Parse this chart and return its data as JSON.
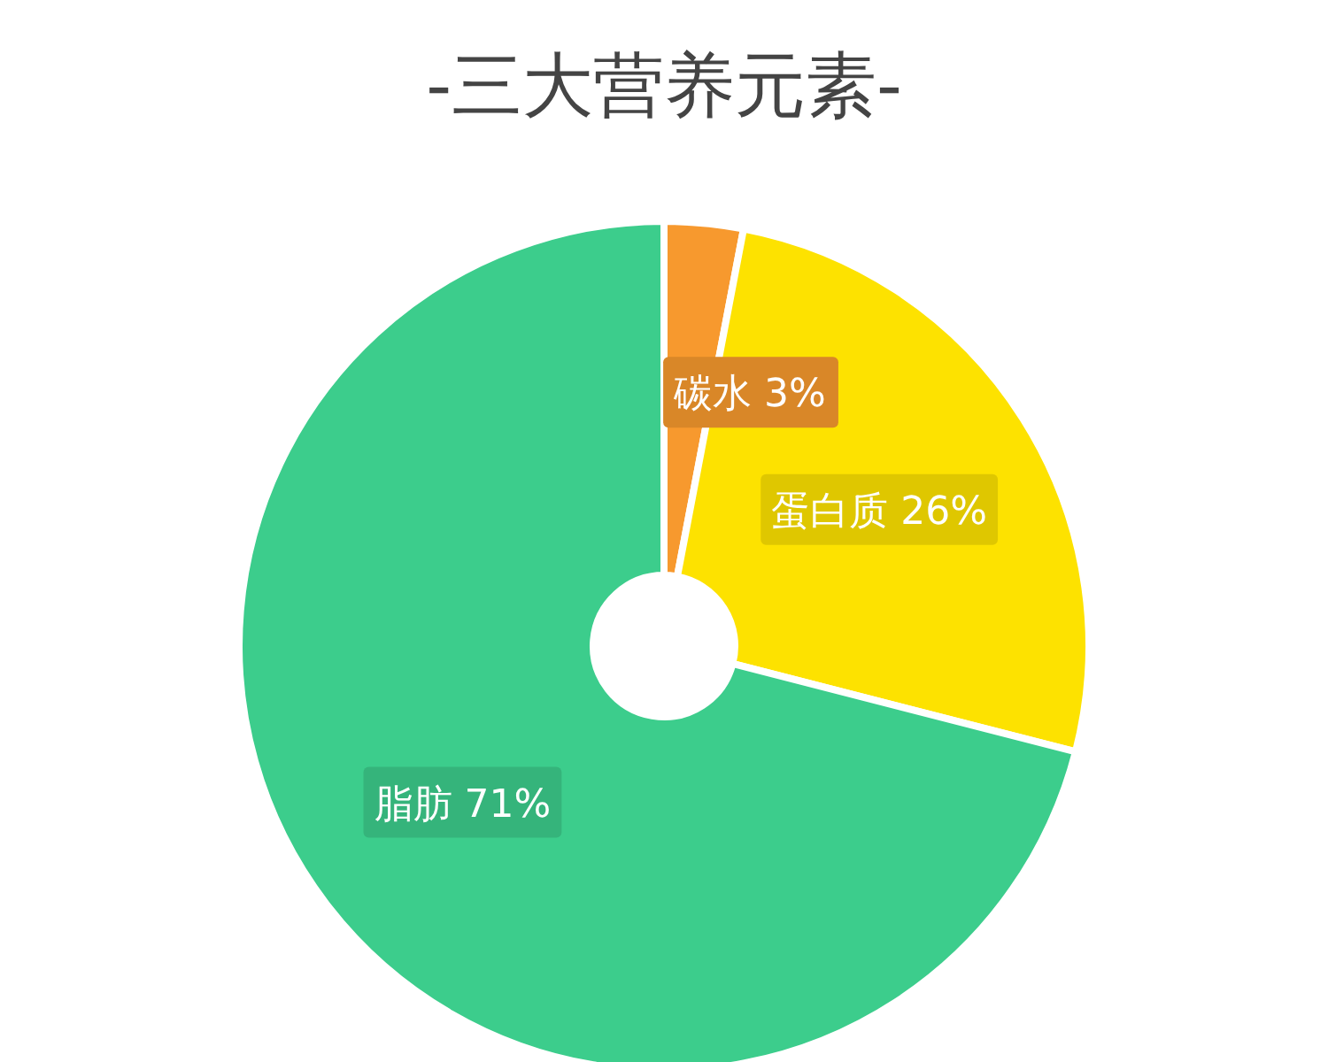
{
  "chart_data": {
    "type": "donut",
    "title": "-三大营养元素-",
    "categories": [
      "碳水",
      "蛋白质",
      "脂肪"
    ],
    "values": [
      3,
      26,
      71
    ],
    "colors": [
      "#f7992e",
      "#fde200",
      "#3ccd8c"
    ],
    "value_labels": [
      "3%",
      "26%",
      "71%"
    ],
    "legend": false
  }
}
